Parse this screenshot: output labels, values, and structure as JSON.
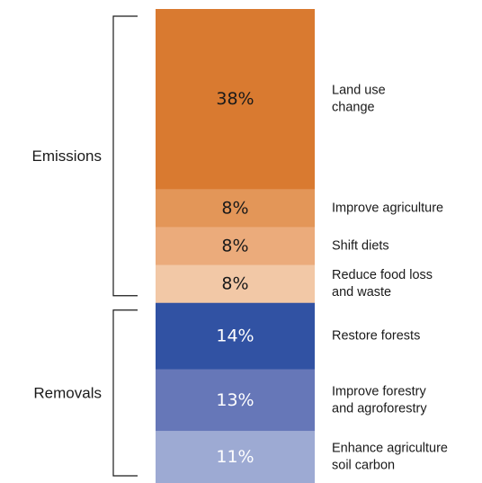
{
  "chart_data": {
    "type": "bar",
    "stacked": true,
    "orientation": "vertical",
    "unit": "%",
    "segments": [
      {
        "label": "Land use change",
        "lines": [
          "Land use",
          "change"
        ],
        "value": 38,
        "value_label": "38%",
        "color": "#D97A30",
        "text_color": "#1a1a1a"
      },
      {
        "label": "Improve agriculture",
        "lines": [
          "Improve agriculture"
        ],
        "value": 8,
        "value_label": "8%",
        "color": "#E39658",
        "text_color": "#1a1a1a"
      },
      {
        "label": "Shift diets",
        "lines": [
          "Shift diets"
        ],
        "value": 8,
        "value_label": "8%",
        "color": "#EBAB7B",
        "text_color": "#1a1a1a"
      },
      {
        "label": "Reduce food loss and waste",
        "lines": [
          "Reduce food loss",
          "and waste"
        ],
        "value": 8,
        "value_label": "8%",
        "color": "#F2C8A6",
        "text_color": "#1a1a1a"
      },
      {
        "label": "Restore forests",
        "lines": [
          "Restore forests"
        ],
        "value": 14,
        "value_label": "14%",
        "color": "#3152A3",
        "text_color": "#ffffff"
      },
      {
        "label": "Improve forestry and agroforestry",
        "lines": [
          "Improve forestry",
          "and agroforestry"
        ],
        "value": 13,
        "value_label": "13%",
        "color": "#6677B8",
        "text_color": "#ffffff"
      },
      {
        "label": "Enhance agriculture soil carbon",
        "lines": [
          "Enhance agriculture",
          "soil carbon"
        ],
        "value": 11,
        "value_label": "11%",
        "color": "#9DAAD3",
        "text_color": "#ffffff"
      }
    ],
    "groups": [
      {
        "label": "Emissions",
        "segments": [
          0,
          1,
          2,
          3
        ]
      },
      {
        "label": "Removals",
        "segments": [
          4,
          5,
          6
        ]
      }
    ]
  }
}
